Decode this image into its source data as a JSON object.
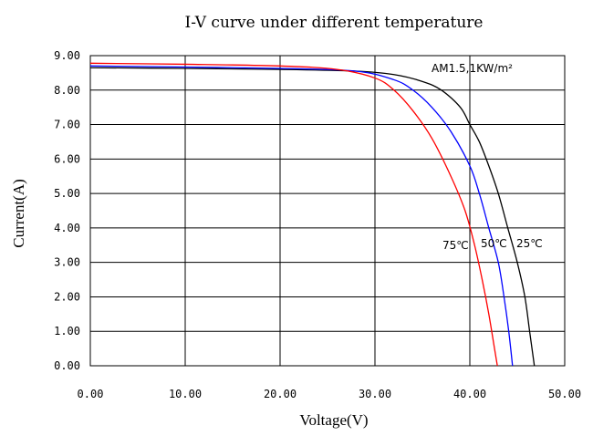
{
  "chart_data": {
    "type": "line",
    "title": "I-V curve under different temperature",
    "xlabel": "Voltage(V)",
    "ylabel": "Current(A)",
    "xlim": [
      0,
      50
    ],
    "ylim": [
      0,
      9
    ],
    "grid": true,
    "x_ticks": [
      "0.00",
      "10.00",
      "20.00",
      "30.00",
      "40.00",
      "50.00"
    ],
    "y_ticks": [
      "0.00",
      "1.00",
      "2.00",
      "3.00",
      "4.00",
      "5.00",
      "6.00",
      "7.00",
      "8.00",
      "9.00"
    ],
    "annotation": "AM1.5,1KW/m²",
    "series": [
      {
        "name": "25℃",
        "color": "#000000",
        "points": [
          [
            0,
            8.65
          ],
          [
            10,
            8.63
          ],
          [
            20,
            8.6
          ],
          [
            28,
            8.55
          ],
          [
            32,
            8.45
          ],
          [
            35,
            8.25
          ],
          [
            37,
            8.0
          ],
          [
            39,
            7.5
          ],
          [
            40,
            7.0
          ],
          [
            41,
            6.5
          ],
          [
            42,
            5.8
          ],
          [
            43,
            5.0
          ],
          [
            44,
            4.0
          ],
          [
            45,
            3.0
          ],
          [
            45.8,
            2.0
          ],
          [
            46.3,
            1.0
          ],
          [
            46.8,
            0
          ]
        ]
      },
      {
        "name": "50℃",
        "color": "#0000ff",
        "points": [
          [
            0,
            8.7
          ],
          [
            10,
            8.67
          ],
          [
            20,
            8.63
          ],
          [
            28,
            8.55
          ],
          [
            32,
            8.3
          ],
          [
            34,
            8.0
          ],
          [
            36,
            7.5
          ],
          [
            38,
            6.8
          ],
          [
            40,
            5.8
          ],
          [
            41,
            5.0
          ],
          [
            42,
            4.0
          ],
          [
            43,
            3.0
          ],
          [
            43.6,
            2.0
          ],
          [
            44.1,
            1.0
          ],
          [
            44.5,
            0
          ]
        ]
      },
      {
        "name": "75℃",
        "color": "#ff0000",
        "points": [
          [
            0,
            8.78
          ],
          [
            10,
            8.75
          ],
          [
            20,
            8.7
          ],
          [
            26,
            8.6
          ],
          [
            30,
            8.35
          ],
          [
            32,
            8.0
          ],
          [
            34,
            7.4
          ],
          [
            36,
            6.6
          ],
          [
            38,
            5.5
          ],
          [
            39.5,
            4.5
          ],
          [
            40.5,
            3.5
          ],
          [
            41.3,
            2.5
          ],
          [
            42,
            1.5
          ],
          [
            42.6,
            0.5
          ],
          [
            42.9,
            0
          ]
        ]
      }
    ]
  }
}
